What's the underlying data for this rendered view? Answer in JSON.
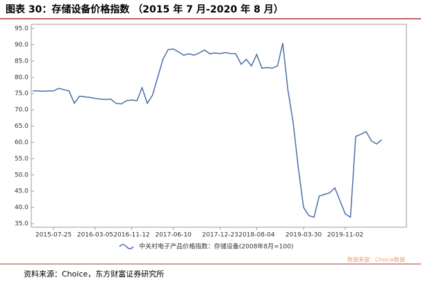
{
  "chart_data": {
    "type": "line",
    "title": "图表 30：存储设备价格指数 （2015 年 7 月-2020 年 8 月）",
    "source": "资料来源：Choice，东方财富证券研究所",
    "watermark": "数据来源：Choice数据",
    "categories": [
      null,
      null,
      null,
      null,
      "2015-07-25",
      null,
      null,
      null,
      null,
      null,
      null,
      null,
      "2016-03-05",
      null,
      null,
      null,
      null,
      null,
      null,
      "2016-11-12",
      null,
      null,
      null,
      null,
      null,
      null,
      null,
      "2017-06-10",
      null,
      null,
      null,
      null,
      null,
      null,
      null,
      null,
      "2017-12-23",
      null,
      null,
      null,
      null,
      null,
      null,
      "2018-08-04",
      null,
      null,
      null,
      null,
      null,
      null,
      null,
      null,
      "2019-03-30",
      null,
      null,
      null,
      null,
      null,
      null,
      null,
      "2019-11-02",
      null,
      null,
      null,
      null,
      null,
      null,
      null
    ],
    "series": [
      {
        "name": "中关村电子产品价格指数：存储设备(2008年8月=100)",
        "color": "#4a6fa5",
        "values": [
          75.8,
          75.8,
          75.7,
          75.8,
          75.8,
          76.6,
          76.2,
          75.8,
          72.0,
          74.2,
          74.0,
          73.8,
          73.5,
          73.3,
          73.2,
          73.3,
          72.0,
          71.8,
          72.8,
          73.0,
          72.8,
          76.8,
          72.0,
          74.5,
          80.0,
          85.5,
          88.5,
          88.7,
          87.8,
          86.8,
          87.2,
          86.8,
          87.5,
          88.4,
          87.2,
          87.5,
          87.3,
          87.6,
          87.3,
          87.2,
          84.0,
          85.5,
          83.5,
          87.0,
          82.8,
          83.0,
          82.8,
          83.5,
          90.5,
          76.0,
          66.0,
          52.0,
          40.0,
          37.5,
          37.0,
          43.5,
          44.0,
          44.5,
          46.0,
          42.0,
          38.0,
          37.0,
          61.8,
          62.5,
          63.3,
          60.5,
          59.5,
          60.8
        ]
      }
    ],
    "ylim": [
      35,
      95
    ],
    "yticks": [
      {
        "value": 35,
        "label": "35.0"
      },
      {
        "value": 40,
        "label": "40.0"
      },
      {
        "value": 45,
        "label": "45.0"
      },
      {
        "value": 50,
        "label": "50.0"
      },
      {
        "value": 55,
        "label": "55.0"
      },
      {
        "value": 60,
        "label": "60.0"
      },
      {
        "value": 65,
        "label": "65.0"
      },
      {
        "value": 70,
        "label": "70.0"
      },
      {
        "value": 75,
        "label": "75.0"
      },
      {
        "value": 80,
        "label": "80.0"
      },
      {
        "value": 85,
        "label": "85.0"
      },
      {
        "value": 90,
        "label": "90.0"
      },
      {
        "value": 95,
        "label": "95.0"
      }
    ]
  }
}
